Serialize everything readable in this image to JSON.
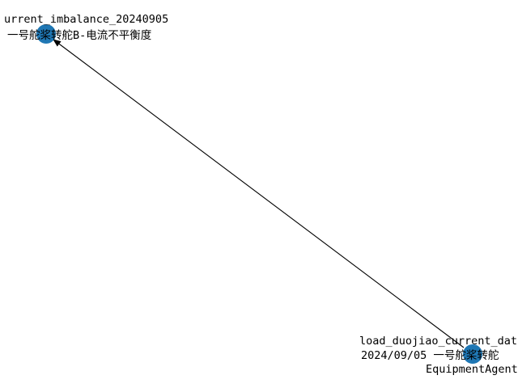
{
  "graph": {
    "nodes": [
      {
        "id": "source",
        "label_lines": [
          "load_duojiao_current_dat",
          "2024/09/05 一号舵桨转舵",
          "EquipmentAgent"
        ]
      },
      {
        "id": "target",
        "label_lines": [
          "urrent_imbalance_20240905",
          "一号舵桨转舵B-电流不平衡度"
        ]
      }
    ],
    "edges": [
      {
        "from": "source",
        "to": "target",
        "directed": true
      }
    ],
    "node_color": "#1f77b4",
    "edge_color": "#000000"
  }
}
